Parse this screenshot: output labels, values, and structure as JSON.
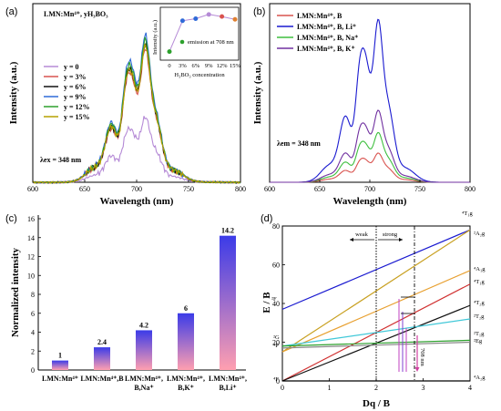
{
  "chart_data": [
    {
      "panel": "(a)",
      "type": "line",
      "annotation_title": "LMN:Mn⁴⁺, yH₃BO₃",
      "annotation_lambda": "λex = 348 nm",
      "xlabel": "Wavelength (nm)",
      "ylabel": "Intensity (a.u.)",
      "xlim": [
        600,
        800
      ],
      "xticks": [
        "600",
        "650",
        "700",
        "750",
        "800"
      ],
      "legend_position": "left-middle",
      "series": [
        {
          "name": "y = 0",
          "color": "#b58ad6",
          "scale": 0.42
        },
        {
          "name": "y = 3%",
          "color": "#d9534f",
          "scale": 0.86
        },
        {
          "name": "y = 6%",
          "color": "#111111",
          "scale": 0.89
        },
        {
          "name": "y = 9%",
          "color": "#2f6ad8",
          "scale": 0.95
        },
        {
          "name": "y = 12%",
          "color": "#2ca02c",
          "scale": 0.92
        },
        {
          "name": "y = 15%",
          "color": "#b5a000",
          "scale": 0.88
        }
      ],
      "inset": {
        "xlabel": "H₃BO₃ concentration",
        "ylabel": "Intensity (a.u.)",
        "legend": "emission at 708 nm",
        "xticks": [
          "0",
          "3%",
          "6%",
          "9%",
          "12%",
          "15%"
        ],
        "x": [
          0,
          3,
          6,
          9,
          12,
          15
        ],
        "y": [
          0.42,
          0.86,
          0.89,
          0.95,
          0.92,
          0.88
        ],
        "colors": [
          "#2ca02c",
          "#2f6ad8",
          "#2f6ad8",
          "#b58ad6",
          "#d9534f",
          "#e08030"
        ]
      }
    },
    {
      "panel": "(b)",
      "type": "line",
      "annotation_lambda": "λem = 348 nm",
      "xlabel": "Wavelength (nm)",
      "ylabel": "Intensity (a.u.)",
      "xlim": [
        600,
        800
      ],
      "xticks": [
        "600",
        "650",
        "700",
        "750",
        "800"
      ],
      "legend_position": "top-left",
      "series": [
        {
          "name": "LMN:Mn⁴⁺, B",
          "color": "#d9534f",
          "scale": 0.17
        },
        {
          "name": "LMN:Mn⁴⁺, B, Li⁺",
          "color": "#1a1ad0",
          "scale": 0.95
        },
        {
          "name": "LMN:Mn⁴⁺, B, Na⁺",
          "color": "#3fbf3f",
          "scale": 0.29
        },
        {
          "name": "LMN:Mn⁴⁺, B, K⁺",
          "color": "#7030a0",
          "scale": 0.42
        }
      ]
    },
    {
      "panel": "(c)",
      "type": "bar",
      "ylabel": "Normalized intensity",
      "ylim": [
        0,
        16
      ],
      "yticks": [
        "0",
        "2",
        "4",
        "6",
        "8",
        "10",
        "12",
        "14",
        "16"
      ],
      "categories": [
        "LMN:Mn⁴⁺",
        "LMN:Mn⁴⁺,B",
        "LMN:Mn⁴⁺,|B,Na⁺",
        "LMN:Mn⁴⁺,|B,K⁺",
        "LMN:Mn⁴⁺,|B,Li⁺"
      ],
      "values": [
        1,
        2.4,
        4.2,
        6,
        14.2
      ],
      "value_labels": [
        "1",
        "2.4",
        "4.2",
        "6",
        "14.2"
      ]
    },
    {
      "panel": "(d)",
      "type": "line",
      "xlabel": "Dq / B",
      "ylabel": "E / B",
      "xlim": [
        0,
        4
      ],
      "ylim": [
        0,
        80
      ],
      "xticks": [
        "0",
        "1",
        "2",
        "3",
        "4"
      ],
      "yticks": [
        "0",
        "20",
        "40",
        "60",
        "80"
      ],
      "region_labels": [
        "weak",
        "strong"
      ],
      "right_labels": [
        "⁴T₁g",
        "²A₂g",
        "⁴A₁g",
        "⁴T₁g",
        "⁴T₂g",
        "²T₂g",
        "²T₁g",
        "²Eg",
        "⁴A₂g"
      ],
      "left_labels": [
        "²F",
        "²G",
        "⁴P",
        "⁴F"
      ],
      "emission_label": "708 nm",
      "lines": [
        {
          "color": "#1a1ad0",
          "x": [
            0,
            4
          ],
          "y": [
            37,
            78
          ]
        },
        {
          "color": "#c8a020",
          "x": [
            0,
            4
          ],
          "y": [
            15,
            78
          ]
        },
        {
          "color": "#e8a030",
          "x": [
            0,
            4
          ],
          "y": [
            15,
            57
          ]
        },
        {
          "color": "#d03030",
          "x": [
            0,
            4
          ],
          "y": [
            0,
            50
          ]
        },
        {
          "color": "#111111",
          "x": [
            0,
            4
          ],
          "y": [
            0,
            39
          ]
        },
        {
          "color": "#40c8d8",
          "x": [
            0,
            4
          ],
          "y": [
            18,
            32
          ]
        },
        {
          "color": "#2ca02c",
          "x": [
            0,
            4
          ],
          "y": [
            18,
            21
          ]
        },
        {
          "color": "#888888",
          "x": [
            0,
            4
          ],
          "y": [
            17,
            20
          ]
        },
        {
          "color": "#000000",
          "x": [
            0,
            4
          ],
          "y": [
            0,
            0
          ]
        }
      ]
    }
  ]
}
